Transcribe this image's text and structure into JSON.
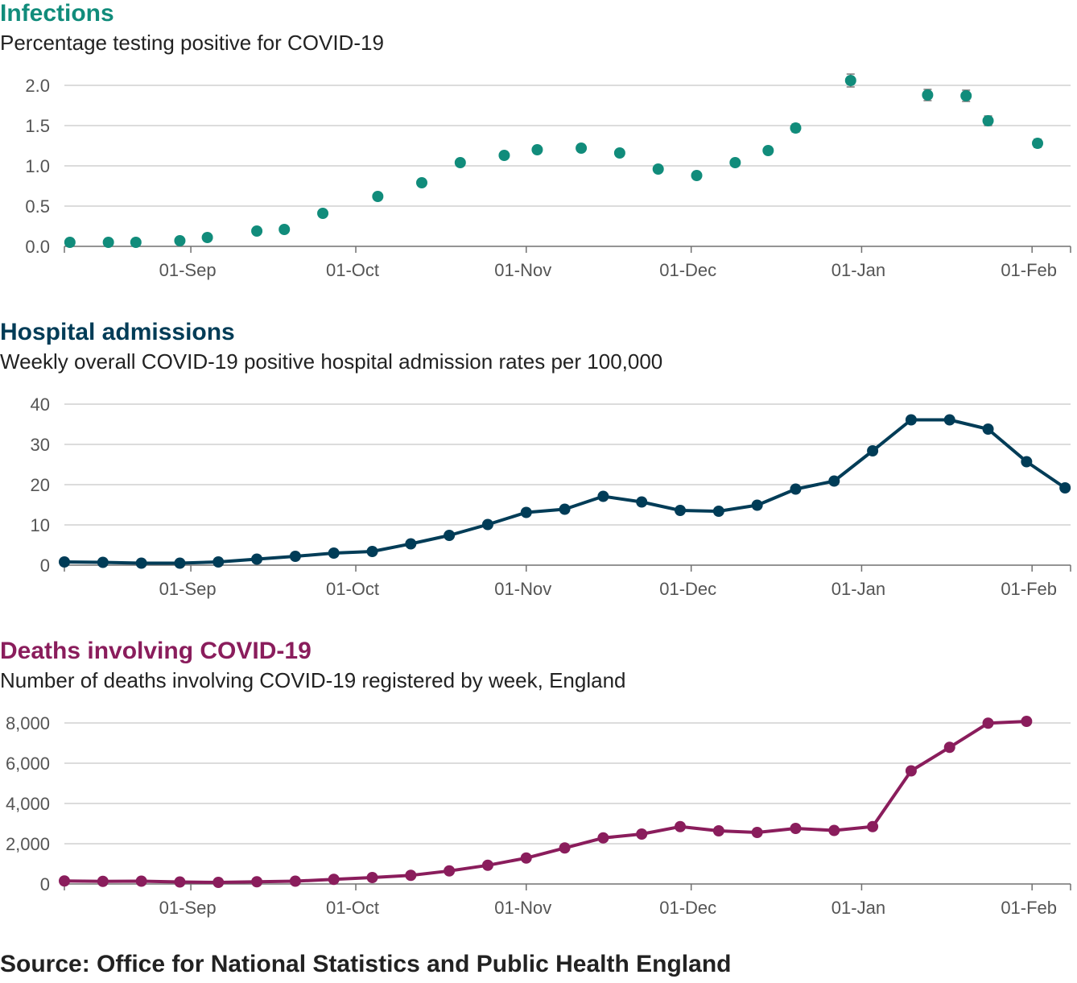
{
  "source": "Source: Office for National Statistics and Public Health England",
  "colors": {
    "infections": "#118c7b",
    "admissions": "#003c57",
    "deaths": "#8a1d5c",
    "grid": "#d0d0d0",
    "axis": "#707070",
    "tick_text": "#555555"
  },
  "x_axis": {
    "start_date": "2020-08-09",
    "end_date": "2021-02-08",
    "ticks": [
      {
        "label": "01-Sep",
        "date": "2020-09-01"
      },
      {
        "label": "01-Oct",
        "date": "2020-10-01"
      },
      {
        "label": "01-Nov",
        "date": "2020-11-01"
      },
      {
        "label": "01-Dec",
        "date": "2020-12-01"
      },
      {
        "label": "01-Jan",
        "date": "2021-01-01"
      },
      {
        "label": "01-Feb",
        "date": "2021-02-01"
      }
    ]
  },
  "chart_data": [
    {
      "id": "infections",
      "type": "scatter",
      "title": "Infections",
      "subtitle": "Percentage testing positive for COVID-19",
      "ylim": [
        0,
        2.0
      ],
      "yticks": [
        {
          "value": 0,
          "label": "0.0"
        },
        {
          "value": 0.5,
          "label": "0.5"
        },
        {
          "value": 1.0,
          "label": "1.0"
        },
        {
          "value": 1.5,
          "label": "1.5"
        },
        {
          "value": 2.0,
          "label": "2.0"
        }
      ],
      "grid": true,
      "error_bars": true,
      "points": [
        {
          "date": "2020-08-10",
          "y": 0.05,
          "err": 0.02
        },
        {
          "date": "2020-08-17",
          "y": 0.05,
          "err": 0.02
        },
        {
          "date": "2020-08-22",
          "y": 0.05,
          "err": 0.02
        },
        {
          "date": "2020-08-30",
          "y": 0.07,
          "err": 0.02
        },
        {
          "date": "2020-09-04",
          "y": 0.11,
          "err": 0.02
        },
        {
          "date": "2020-09-13",
          "y": 0.19,
          "err": 0.02
        },
        {
          "date": "2020-09-18",
          "y": 0.21,
          "err": 0.02
        },
        {
          "date": "2020-09-25",
          "y": 0.41,
          "err": 0.02
        },
        {
          "date": "2020-10-05",
          "y": 0.62,
          "err": 0.03
        },
        {
          "date": "2020-10-13",
          "y": 0.79,
          "err": 0.03
        },
        {
          "date": "2020-10-20",
          "y": 1.04,
          "err": 0.03
        },
        {
          "date": "2020-10-28",
          "y": 1.13,
          "err": 0.04
        },
        {
          "date": "2020-11-03",
          "y": 1.2,
          "err": 0.04
        },
        {
          "date": "2020-11-11",
          "y": 1.22,
          "err": 0.04
        },
        {
          "date": "2020-11-18",
          "y": 1.16,
          "err": 0.04
        },
        {
          "date": "2020-11-25",
          "y": 0.96,
          "err": 0.03
        },
        {
          "date": "2020-12-02",
          "y": 0.88,
          "err": 0.03
        },
        {
          "date": "2020-12-09",
          "y": 1.04,
          "err": 0.03
        },
        {
          "date": "2020-12-15",
          "y": 1.19,
          "err": 0.04
        },
        {
          "date": "2020-12-20",
          "y": 1.47,
          "err": 0.05
        },
        {
          "date": "2020-12-30",
          "y": 2.06,
          "err": 0.08
        },
        {
          "date": "2021-01-13",
          "y": 1.88,
          "err": 0.07
        },
        {
          "date": "2021-01-20",
          "y": 1.87,
          "err": 0.07
        },
        {
          "date": "2021-01-24",
          "y": 1.56,
          "err": 0.06
        },
        {
          "date": "2021-02-02",
          "y": 1.28,
          "err": 0.05
        }
      ]
    },
    {
      "id": "admissions",
      "type": "line",
      "title": "Hospital admissions",
      "subtitle": "Weekly overall COVID-19 positive hospital admission rates per 100,000",
      "ylim": [
        0,
        40
      ],
      "yticks": [
        {
          "value": 0,
          "label": "0"
        },
        {
          "value": 10,
          "label": "10"
        },
        {
          "value": 20,
          "label": "20"
        },
        {
          "value": 30,
          "label": "30"
        },
        {
          "value": 40,
          "label": "40"
        }
      ],
      "grid": true,
      "points": [
        {
          "date": "2020-08-09",
          "y": 0.8
        },
        {
          "date": "2020-08-16",
          "y": 0.7
        },
        {
          "date": "2020-08-23",
          "y": 0.5
        },
        {
          "date": "2020-08-30",
          "y": 0.5
        },
        {
          "date": "2020-09-06",
          "y": 0.8
        },
        {
          "date": "2020-09-13",
          "y": 1.5
        },
        {
          "date": "2020-09-20",
          "y": 2.2
        },
        {
          "date": "2020-09-27",
          "y": 3.0
        },
        {
          "date": "2020-10-04",
          "y": 3.4
        },
        {
          "date": "2020-10-11",
          "y": 5.3
        },
        {
          "date": "2020-10-18",
          "y": 7.4
        },
        {
          "date": "2020-10-25",
          "y": 10.1
        },
        {
          "date": "2020-11-01",
          "y": 13.1
        },
        {
          "date": "2020-11-08",
          "y": 13.9
        },
        {
          "date": "2020-11-15",
          "y": 17.1
        },
        {
          "date": "2020-11-22",
          "y": 15.7
        },
        {
          "date": "2020-11-29",
          "y": 13.6
        },
        {
          "date": "2020-12-06",
          "y": 13.4
        },
        {
          "date": "2020-12-13",
          "y": 14.9
        },
        {
          "date": "2020-12-20",
          "y": 18.9
        },
        {
          "date": "2020-12-27",
          "y": 20.9
        },
        {
          "date": "2021-01-03",
          "y": 28.4
        },
        {
          "date": "2021-01-10",
          "y": 36.1
        },
        {
          "date": "2021-01-17",
          "y": 36.1
        },
        {
          "date": "2021-01-24",
          "y": 33.8
        },
        {
          "date": "2021-01-31",
          "y": 25.7
        },
        {
          "date": "2021-02-07",
          "y": 19.2
        }
      ]
    },
    {
      "id": "deaths",
      "type": "line",
      "title": "Deaths involving COVID-19",
      "subtitle": "Number of deaths involving COVID-19 registered by week, England",
      "ylim": [
        0,
        8000
      ],
      "yticks": [
        {
          "value": 0,
          "label": "0"
        },
        {
          "value": 2000,
          "label": "2,000"
        },
        {
          "value": 4000,
          "label": "4,000"
        },
        {
          "value": 6000,
          "label": "6,000"
        },
        {
          "value": 8000,
          "label": "8,000"
        }
      ],
      "grid": true,
      "points": [
        {
          "date": "2020-08-09",
          "y": 150
        },
        {
          "date": "2020-08-16",
          "y": 130
        },
        {
          "date": "2020-08-23",
          "y": 140
        },
        {
          "date": "2020-08-30",
          "y": 100
        },
        {
          "date": "2020-09-06",
          "y": 80
        },
        {
          "date": "2020-09-13",
          "y": 110
        },
        {
          "date": "2020-09-20",
          "y": 140
        },
        {
          "date": "2020-09-27",
          "y": 230
        },
        {
          "date": "2020-10-04",
          "y": 320
        },
        {
          "date": "2020-10-11",
          "y": 430
        },
        {
          "date": "2020-10-18",
          "y": 650
        },
        {
          "date": "2020-10-25",
          "y": 930
        },
        {
          "date": "2020-11-01",
          "y": 1290
        },
        {
          "date": "2020-11-08",
          "y": 1790
        },
        {
          "date": "2020-11-15",
          "y": 2290
        },
        {
          "date": "2020-11-22",
          "y": 2480
        },
        {
          "date": "2020-11-29",
          "y": 2850
        },
        {
          "date": "2020-12-06",
          "y": 2640
        },
        {
          "date": "2020-12-13",
          "y": 2560
        },
        {
          "date": "2020-12-20",
          "y": 2760
        },
        {
          "date": "2020-12-27",
          "y": 2660
        },
        {
          "date": "2021-01-03",
          "y": 2850
        },
        {
          "date": "2021-01-10",
          "y": 5620
        },
        {
          "date": "2021-01-17",
          "y": 6790
        },
        {
          "date": "2021-01-24",
          "y": 7990
        },
        {
          "date": "2021-01-31",
          "y": 8080
        }
      ]
    }
  ]
}
